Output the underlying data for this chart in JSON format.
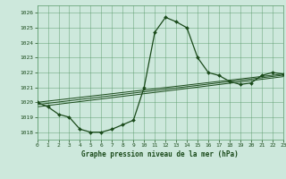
{
  "title": "Graphe pression niveau de la mer (hPa)",
  "xlim": [
    0,
    23
  ],
  "ylim": [
    1017.5,
    1026.5
  ],
  "yticks": [
    1018,
    1019,
    1020,
    1021,
    1022,
    1023,
    1024,
    1025,
    1026
  ],
  "xticks": [
    0,
    1,
    2,
    3,
    4,
    5,
    6,
    7,
    8,
    9,
    10,
    11,
    12,
    13,
    14,
    15,
    16,
    17,
    18,
    19,
    20,
    21,
    22,
    23
  ],
  "bg_color": "#cde8dc",
  "grid_color": "#5a9a6a",
  "line_color": "#1a4a1a",
  "marker_color": "#1a4a1a",
  "line1_x": [
    0,
    1,
    2,
    3,
    4,
    5,
    6,
    7,
    8,
    9,
    10,
    11,
    12,
    13,
    14,
    15,
    16,
    17,
    18,
    19,
    20,
    21,
    22,
    23
  ],
  "line1_y": [
    1020.0,
    1019.7,
    1019.2,
    1019.0,
    1018.2,
    1018.0,
    1018.0,
    1018.2,
    1018.5,
    1018.8,
    1021.0,
    1024.7,
    1025.7,
    1025.4,
    1025.0,
    1023.0,
    1022.0,
    1021.8,
    1021.4,
    1021.2,
    1021.3,
    1021.8,
    1022.0,
    1021.9
  ],
  "line2_x": [
    0,
    23
  ],
  "line2_y": [
    1020.0,
    1021.9
  ],
  "line3_x": [
    0,
    23
  ],
  "line3_y": [
    1019.85,
    1021.82
  ],
  "line4_x": [
    0,
    23
  ],
  "line4_y": [
    1019.7,
    1021.72
  ]
}
